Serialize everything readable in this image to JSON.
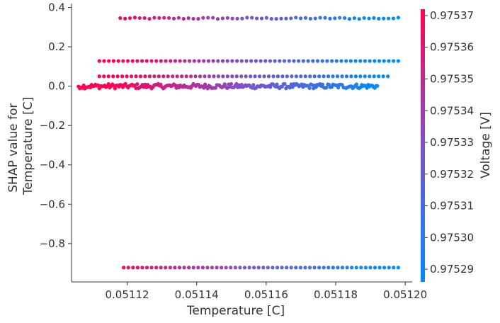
{
  "chart_data": {
    "type": "scatter",
    "xlabel": "Temperature [C]",
    "ylabel_lines": [
      "SHAP value for",
      "Temperature [C]"
    ],
    "colorbar_label": "Voltage [V]",
    "xlim": [
      0.051104,
      0.051202
    ],
    "ylim": [
      -0.995,
      0.42
    ],
    "x_ticks": [
      0.05112,
      0.05114,
      0.05116,
      0.05118,
      0.0512
    ],
    "x_tick_labels": [
      "0.05112",
      "0.05114",
      "0.05116",
      "0.05118",
      "0.05120"
    ],
    "y_ticks": [
      0.4,
      0.2,
      0.0,
      -0.2,
      -0.4,
      -0.6,
      -0.8
    ],
    "y_tick_labels": [
      "0.4",
      "0.2",
      "0.0",
      "−0.2",
      "−0.4",
      "−0.6",
      "−0.8"
    ],
    "colorbar": {
      "min": 0.975286,
      "max": 0.975372,
      "ticks": [
        0.97537,
        0.97536,
        0.97535,
        0.97534,
        0.97533,
        0.97532,
        0.97531,
        0.9753,
        0.97529
      ],
      "tick_labels": [
        "0.97537",
        "0.97536",
        "0.97535",
        "0.97534",
        "0.97533",
        "0.97532",
        "0.97531",
        "0.97530",
        "0.97529"
      ],
      "color_low": "#008bfb",
      "color_mid": "#7c52c8",
      "color_high": "#ff0052"
    },
    "bands": [
      {
        "shap": 0.345,
        "x_start": 0.051118,
        "x_end": 0.051198,
        "count": 58,
        "jitter": 0.004
      },
      {
        "shap": 0.128,
        "x_start": 0.051112,
        "x_end": 0.051198,
        "count": 64,
        "jitter": 0.0
      },
      {
        "shap": 0.05,
        "x_start": 0.051112,
        "x_end": 0.051195,
        "count": 64,
        "jitter": 0.0
      },
      {
        "shap": 0.0,
        "x_start": 0.051106,
        "x_end": 0.051192,
        "count": 230,
        "jitter": 0.012
      },
      {
        "shap": -0.922,
        "x_start": 0.051119,
        "x_end": 0.051198,
        "count": 60,
        "jitter": 0.0
      }
    ]
  }
}
